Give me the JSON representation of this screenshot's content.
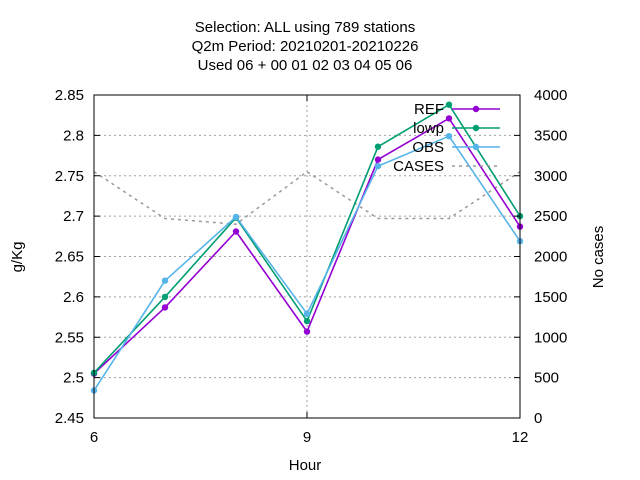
{
  "chart_data": {
    "type": "line",
    "title_lines": [
      "Selection: ALL using   789 stations",
      "Q2m   Period: 20210201-20210226",
      "Used  06  + 00 01 02 03 04 05 06"
    ],
    "xlabel": "Hour",
    "ylabel": "g/Kg",
    "y2label": "No cases",
    "xlim": [
      6,
      12
    ],
    "ylim": [
      2.45,
      2.85
    ],
    "y2lim": [
      0,
      4000
    ],
    "xticks": [
      6,
      9,
      12
    ],
    "yticks": [
      2.45,
      2.5,
      2.55,
      2.6,
      2.65,
      2.7,
      2.75,
      2.8,
      2.85
    ],
    "ytick_labels": [
      "2.45",
      "2.5",
      "2.55",
      "2.6",
      "2.65",
      "2.7",
      "2.75",
      "2.8",
      "2.85"
    ],
    "y2ticks": [
      0,
      500,
      1000,
      1500,
      2000,
      2500,
      3000,
      3500,
      4000
    ],
    "grid": true,
    "legend_position": "top-right",
    "x": [
      6,
      7,
      8,
      9,
      10,
      11,
      12
    ],
    "series": [
      {
        "name": "REF",
        "color": "#9400d3",
        "axis": "y1",
        "marker": "filled-circle",
        "values": [
          2.505,
          2.587,
          2.681,
          2.557,
          2.77,
          2.821,
          2.687
        ]
      },
      {
        "name": "lowp",
        "color": "#009e73",
        "axis": "y1",
        "marker": "filled-circle",
        "values": [
          2.506,
          2.6,
          2.698,
          2.57,
          2.786,
          2.838,
          2.7
        ]
      },
      {
        "name": "OBS",
        "color": "#56b4e9",
        "axis": "y1",
        "marker": "filled-circle",
        "values": [
          2.484,
          2.62,
          2.699,
          2.579,
          2.762,
          2.799,
          2.669
        ]
      },
      {
        "name": "CASES",
        "color": "#999999",
        "axis": "y2",
        "dashed": true,
        "marker": "none",
        "values": [
          3050,
          2470,
          2400,
          3050,
          2470,
          2470,
          3050
        ]
      }
    ]
  }
}
